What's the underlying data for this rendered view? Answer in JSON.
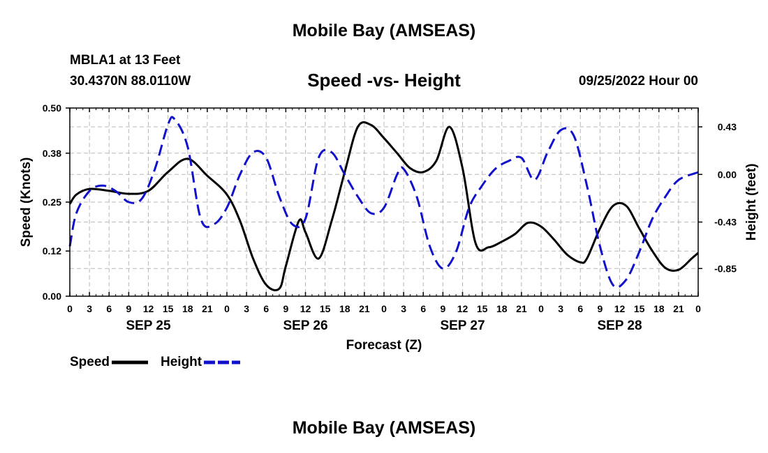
{
  "header": {
    "title": "Mobile Bay (AMSEAS)",
    "station": "MBLA1 at 13 Feet",
    "coordinates": "30.4370N  88.0110W",
    "subtitle": "Speed -vs- Height",
    "datetime": "09/25/2022 Hour 00",
    "footer_title": "Mobile Bay (AMSEAS)"
  },
  "chart_data": {
    "type": "line",
    "title": "Speed -vs- Height",
    "xlabel": "Forecast (Z)",
    "ylabel_left": "Speed (Knots)",
    "ylabel_right": "Height (feet)",
    "x_unit": "hours since 09/25/2022 00Z",
    "xlim": [
      0,
      96
    ],
    "ylim_left": [
      0,
      0.5
    ],
    "ylim_right": [
      -1.1,
      0.6
    ],
    "x_ticks": [
      0,
      3,
      6,
      9,
      12,
      15,
      18,
      21,
      24,
      27,
      30,
      33,
      36,
      39,
      42,
      45,
      48,
      51,
      54,
      57,
      60,
      63,
      66,
      69,
      72,
      75,
      78,
      81,
      84,
      87,
      90,
      93,
      96
    ],
    "x_tick_labels": [
      "0",
      "3",
      "6",
      "9",
      "12",
      "15",
      "18",
      "21",
      "0",
      "3",
      "6",
      "9",
      "12",
      "15",
      "18",
      "21",
      "0",
      "3",
      "6",
      "9",
      "12",
      "15",
      "18",
      "21",
      "0",
      "3",
      "6",
      "9",
      "12",
      "15",
      "18",
      "21",
      "0"
    ],
    "day_labels": [
      {
        "x": 12,
        "label": "SEP 25"
      },
      {
        "x": 36,
        "label": "SEP 26"
      },
      {
        "x": 60,
        "label": "SEP 27"
      },
      {
        "x": 84,
        "label": "SEP 28"
      }
    ],
    "left_ticks": [
      0.0,
      0.12,
      0.25,
      0.38,
      0.5
    ],
    "left_tick_labels": [
      "0.00",
      "0.12",
      "0.25",
      "0.38",
      "0.50"
    ],
    "right_ticks": [
      0.43,
      0.0,
      -0.43,
      -0.85
    ],
    "right_tick_labels": [
      "0.43",
      "0.00",
      "-0.43",
      "-0.85"
    ],
    "grid": true,
    "legend_position": "bottom-left",
    "series": [
      {
        "name": "Speed",
        "axis": "left",
        "color": "#000000",
        "dash": "solid",
        "x": [
          0,
          1,
          3,
          6,
          9,
          12,
          15,
          18,
          21,
          24,
          26,
          28,
          30,
          32,
          33,
          35,
          36,
          38,
          40,
          42,
          44,
          46,
          48,
          50,
          52,
          54,
          56,
          58,
          60,
          62,
          64,
          66,
          68,
          70,
          72,
          74,
          76,
          78,
          79,
          81,
          83,
          85,
          87,
          89,
          91,
          93,
          95,
          96
        ],
        "y": [
          0.245,
          0.27,
          0.285,
          0.28,
          0.272,
          0.28,
          0.33,
          0.365,
          0.32,
          0.27,
          0.2,
          0.1,
          0.03,
          0.02,
          0.08,
          0.2,
          0.17,
          0.1,
          0.2,
          0.33,
          0.45,
          0.455,
          0.42,
          0.38,
          0.34,
          0.33,
          0.36,
          0.45,
          0.34,
          0.14,
          0.13,
          0.145,
          0.165,
          0.195,
          0.185,
          0.15,
          0.11,
          0.09,
          0.1,
          0.18,
          0.24,
          0.24,
          0.18,
          0.12,
          0.075,
          0.07,
          0.1,
          0.115
        ]
      },
      {
        "name": "Height",
        "axis": "right",
        "color": "#1111cc",
        "dash": "dashed",
        "x": [
          0,
          1,
          3,
          5,
          7,
          9,
          11,
          13,
          15,
          16,
          18,
          20,
          22,
          24,
          26,
          28,
          30,
          32,
          34,
          36,
          38,
          40,
          42,
          44,
          46,
          48,
          50,
          51,
          53,
          55,
          57,
          59,
          61,
          63,
          65,
          67,
          69,
          71,
          73,
          75,
          77,
          79,
          81,
          83,
          85,
          87,
          89,
          91,
          93,
          96
        ],
        "y": [
          -0.65,
          -0.35,
          -0.15,
          -0.1,
          -0.15,
          -0.25,
          -0.22,
          0.05,
          0.45,
          0.5,
          0.25,
          -0.4,
          -0.45,
          -0.3,
          0.0,
          0.2,
          0.15,
          -0.2,
          -0.45,
          -0.4,
          0.15,
          0.2,
          0.0,
          -0.2,
          -0.35,
          -0.3,
          0.0,
          0.05,
          -0.2,
          -0.65,
          -0.85,
          -0.7,
          -0.3,
          -0.1,
          0.05,
          0.12,
          0.15,
          -0.05,
          0.2,
          0.4,
          0.35,
          -0.1,
          -0.65,
          -1.0,
          -0.95,
          -0.7,
          -0.4,
          -0.2,
          -0.05,
          0.02
        ]
      }
    ]
  },
  "legend": {
    "speed_label": "Speed",
    "height_label": "Height"
  },
  "colors": {
    "speed": "#000000",
    "height": "#1111cc",
    "grid": "#b8b8b8"
  }
}
